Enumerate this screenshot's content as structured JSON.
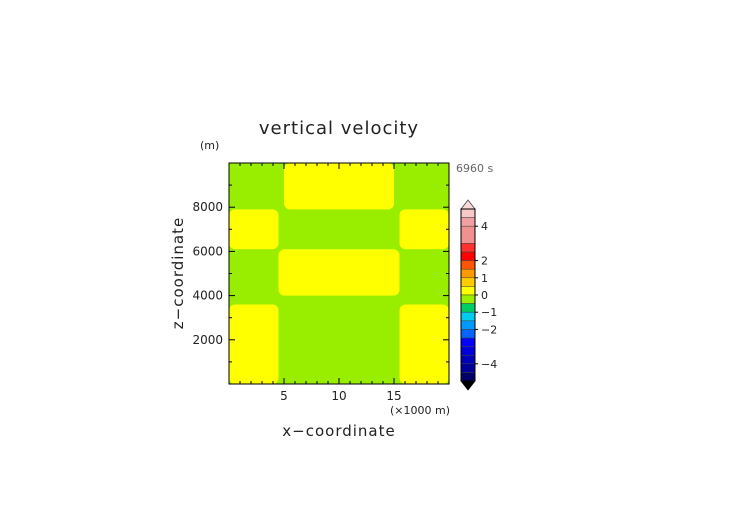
{
  "chart_data": {
    "type": "heatmap",
    "title": "vertical velocity",
    "xlabel": "x−coordinate",
    "ylabel": "z−coordinate",
    "x_unit": "(×1000 m)",
    "y_unit": "(m)",
    "time_label": "6960 s",
    "xlim": [
      0,
      20
    ],
    "ylim": [
      0,
      10000
    ],
    "xticks": [
      5,
      10,
      15
    ],
    "yticks": [
      2000,
      4000,
      6000,
      8000
    ],
    "xtick_labels": [
      "5",
      "10",
      "15"
    ],
    "ytick_labels": [
      "2000",
      "4000",
      "6000",
      "8000"
    ],
    "field_levels": [
      {
        "value_range": [
          0,
          0.5
        ],
        "color": "#ffff00"
      },
      {
        "value_range": [
          -0.5,
          0
        ],
        "color": "#99ee00"
      }
    ],
    "regions": [
      {
        "x": [
          0,
          20
        ],
        "z": [
          0,
          10000
        ],
        "value_range": [
          -0.5,
          0
        ],
        "note": "background"
      },
      {
        "x": [
          0,
          4.5
        ],
        "z": [
          0,
          3600
        ],
        "value_range": [
          0,
          0.5
        ]
      },
      {
        "x": [
          15.5,
          20
        ],
        "z": [
          0,
          3600
        ],
        "value_range": [
          0,
          0.5
        ]
      },
      {
        "x": [
          4.5,
          15.5
        ],
        "z": [
          4000,
          6100
        ],
        "value_range": [
          0,
          0.5
        ]
      },
      {
        "x": [
          0,
          4.5
        ],
        "z": [
          6100,
          7900
        ],
        "value_range": [
          0,
          0.5
        ]
      },
      {
        "x": [
          15.5,
          20
        ],
        "z": [
          6100,
          7900
        ],
        "value_range": [
          0,
          0.5
        ]
      },
      {
        "x": [
          5,
          15
        ],
        "z": [
          7900,
          10000
        ],
        "value_range": [
          0,
          0.5
        ]
      }
    ],
    "colorbar": {
      "tick_labels": [
        "4",
        "2",
        "1",
        "0",
        "−1",
        "−2",
        "−4"
      ],
      "tick_values": [
        4,
        2,
        1,
        0,
        -1,
        -2,
        -4
      ],
      "vmin": -5,
      "vmax": 5,
      "levels": [
        {
          "from": 4.5,
          "to": 5,
          "color": "#f8c8c8"
        },
        {
          "from": 4,
          "to": 4.5,
          "color": "#f0a0a0"
        },
        {
          "from": 3,
          "to": 4,
          "color": "#f09090"
        },
        {
          "from": 2.5,
          "to": 3,
          "color": "#ff3030"
        },
        {
          "from": 2,
          "to": 2.5,
          "color": "#ff0000"
        },
        {
          "from": 1.5,
          "to": 2,
          "color": "#ff5500"
        },
        {
          "from": 1,
          "to": 1.5,
          "color": "#ff9900"
        },
        {
          "from": 0.5,
          "to": 1,
          "color": "#ffcc00"
        },
        {
          "from": 0,
          "to": 0.5,
          "color": "#ffff00"
        },
        {
          "from": -0.5,
          "to": 0,
          "color": "#99ee00"
        },
        {
          "from": -1,
          "to": -0.5,
          "color": "#00cc66"
        },
        {
          "from": -1.5,
          "to": -1,
          "color": "#00ccee"
        },
        {
          "from": -2,
          "to": -1.5,
          "color": "#0099ff"
        },
        {
          "from": -2.5,
          "to": -2,
          "color": "#0066ff"
        },
        {
          "from": -3,
          "to": -2.5,
          "color": "#0000ff"
        },
        {
          "from": -3.5,
          "to": -3,
          "color": "#0000dd"
        },
        {
          "from": -4,
          "to": -3.5,
          "color": "#0000bb"
        },
        {
          "from": -4.5,
          "to": -4,
          "color": "#000099"
        },
        {
          "from": -5,
          "to": -4.5,
          "color": "#000066"
        }
      ],
      "over_color": "#f8d8d8",
      "under_color": "#000000"
    }
  }
}
